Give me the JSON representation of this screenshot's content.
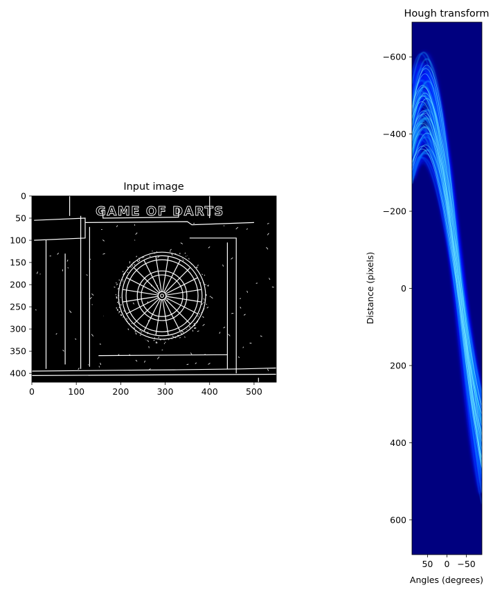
{
  "chart_data": [
    {
      "type": "image",
      "title": "Input image",
      "xlabel": "",
      "ylabel": "",
      "xlim": [
        0,
        550
      ],
      "ylim": [
        420,
        0
      ],
      "xticks": [
        0,
        100,
        200,
        300,
        400,
        500
      ],
      "yticks": [
        0,
        50,
        100,
        150,
        200,
        250,
        300,
        350,
        400
      ],
      "colormap": "gray",
      "background": "#000000",
      "image_text": "GAME OF DARTS",
      "dartboard": {
        "center_x": 293,
        "center_y": 225,
        "outer_radius": 90,
        "segments": 20
      }
    },
    {
      "type": "heatmap",
      "title": "Hough transform",
      "xlabel": "Angles (degrees)",
      "ylabel": "Distance (pixels)",
      "xlim": [
        90,
        -90
      ],
      "ylim": [
        -690,
        690
      ],
      "xticks": [
        50,
        0,
        -50
      ],
      "xtick_labels": [
        "50",
        "0",
        "−50"
      ],
      "yticks": [
        -600,
        -400,
        -200,
        0,
        200,
        400,
        600
      ],
      "ytick_labels": [
        "−600",
        "−400",
        "−200",
        "0",
        "200",
        "400",
        "600"
      ],
      "colormap": "jet",
      "background": "#00007f"
    }
  ]
}
